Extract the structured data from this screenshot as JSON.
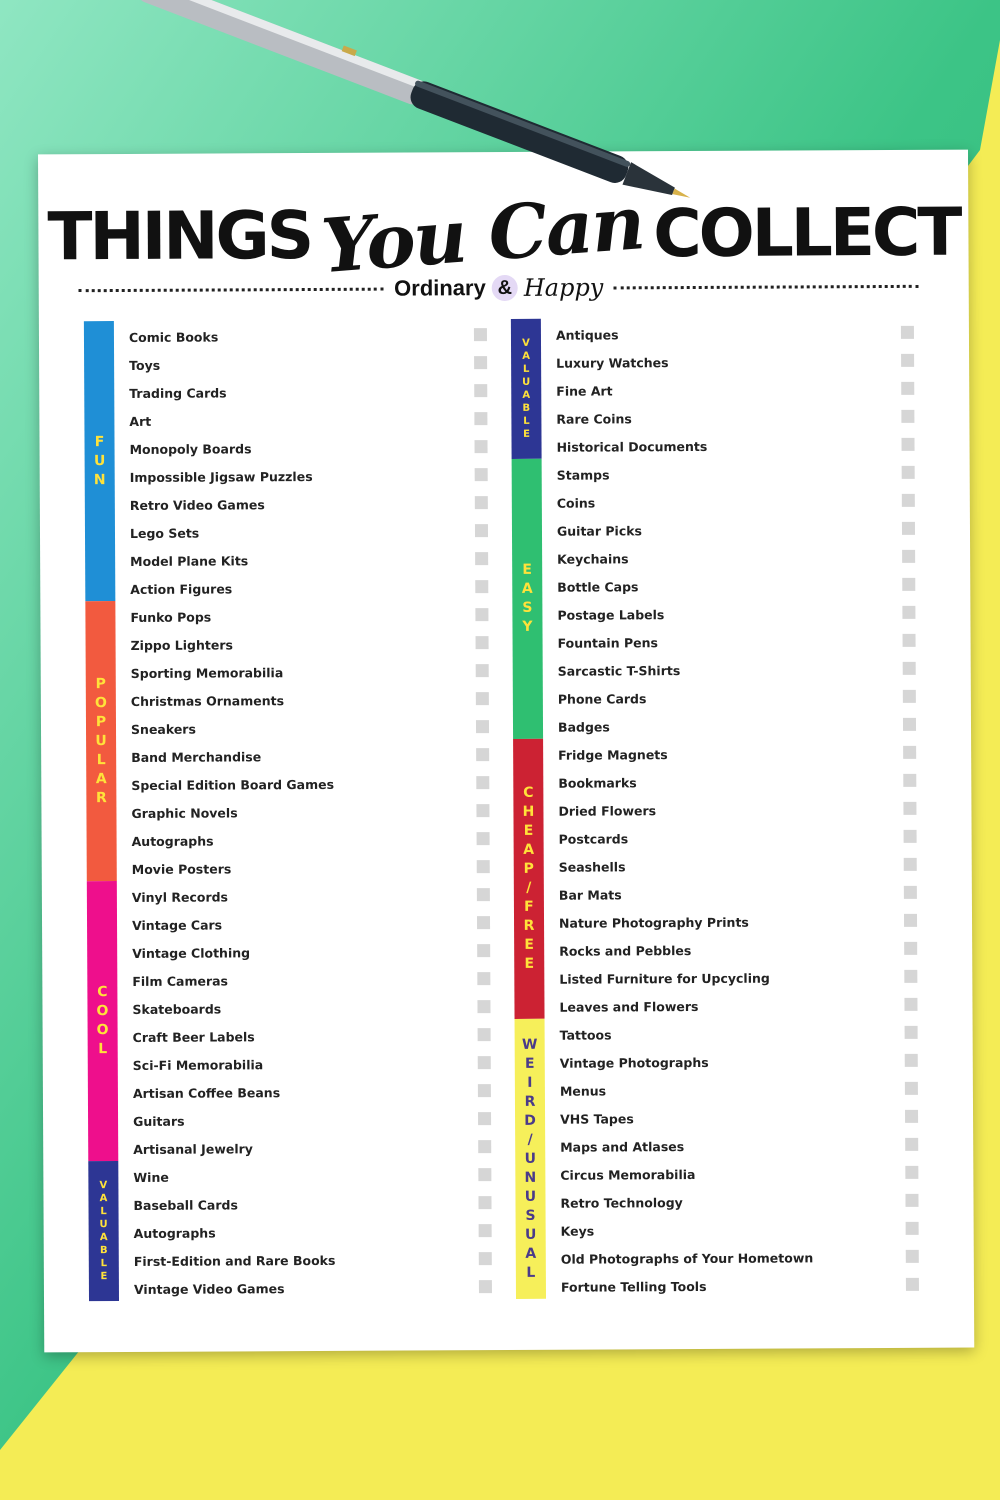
{
  "colors": {
    "fun": "#1f8fd6",
    "popular": "#f25a3f",
    "cool": "#ee0f8c",
    "valuable": "#2d3694",
    "easy": "#2fbf71",
    "cheap": "#cc2233",
    "weird": "#f6ef5a",
    "band_text": "#ffe23a",
    "band_text_dark": "#4a3a8a",
    "checkbox": "#d6d6d6",
    "background_green": "#3cc486",
    "background_yellow": "#f4ec55"
  },
  "title": {
    "part1": "THINGS",
    "script": "You Can",
    "part2": "COLLECT"
  },
  "brand": {
    "name": "Ordinary",
    "amp": "&",
    "script": "Happy"
  },
  "left_column": {
    "categories": [
      {
        "key": "fun",
        "label": "FUN",
        "color": "#1f8fd6",
        "count": 10
      },
      {
        "key": "popular",
        "label": "POPULAR",
        "color": "#f25a3f",
        "count": 10
      },
      {
        "key": "cool",
        "label": "COOL",
        "color": "#ee0f8c",
        "count": 10
      },
      {
        "key": "valuable",
        "label": "VALUABLE",
        "color": "#2d3694",
        "count": 5
      }
    ],
    "items": [
      "Comic Books",
      "Toys",
      "Trading Cards",
      "Art",
      "Monopoly Boards",
      "Impossible Jigsaw Puzzles",
      "Retro Video Games",
      "Lego Sets",
      "Model Plane Kits",
      "Action Figures",
      "Funko Pops",
      "Zippo Lighters",
      "Sporting Memorabilia",
      "Christmas Ornaments",
      "Sneakers",
      "Band Merchandise",
      "Special Edition Board Games",
      "Graphic Novels",
      "Autographs",
      "Movie Posters",
      "Vinyl Records",
      "Vintage Cars",
      "Vintage Clothing",
      "Film Cameras",
      "Skateboards",
      "Craft Beer Labels",
      "Sci-Fi Memorabilia",
      "Artisan Coffee Beans",
      "Guitars",
      "Artisanal Jewelry",
      "Wine",
      "Baseball Cards",
      "Autographs",
      "First-Edition and Rare Books",
      "Vintage Video Games"
    ]
  },
  "right_column": {
    "categories": [
      {
        "key": "valuable",
        "label": "VALUABLE",
        "color": "#2d3694",
        "count": 5
      },
      {
        "key": "easy",
        "label": "EASY",
        "color": "#2fbf71",
        "count": 10
      },
      {
        "key": "cheap",
        "label": "CHEAP/FREE",
        "color": "#cc2233",
        "count": 10
      },
      {
        "key": "weird",
        "label": "WEIRD/UNUSUAL",
        "color": "#f6ef5a",
        "count": 10
      }
    ],
    "items": [
      "Antiques",
      "Luxury Watches",
      "Fine Art",
      "Rare Coins",
      "Historical Documents",
      "Stamps",
      "Coins",
      "Guitar Picks",
      "Keychains",
      "Bottle Caps",
      "Postage Labels",
      "Fountain Pens",
      "Sarcastic T-Shirts",
      "Phone Cards",
      "Badges",
      "Fridge Magnets",
      "Bookmarks",
      "Dried Flowers",
      "Postcards",
      "Seashells",
      "Bar Mats",
      "Nature Photography Prints",
      "Rocks and Pebbles",
      "Listed Furniture for Upcycling",
      "Leaves and Flowers",
      "Tattoos",
      "Vintage Photographs",
      "Menus",
      "VHS Tapes",
      "Maps and Atlases",
      "Circus Memorabilia",
      "Retro Technology",
      "Keys",
      "Old Photographs of Your Hometown",
      "Fortune Telling Tools"
    ]
  }
}
